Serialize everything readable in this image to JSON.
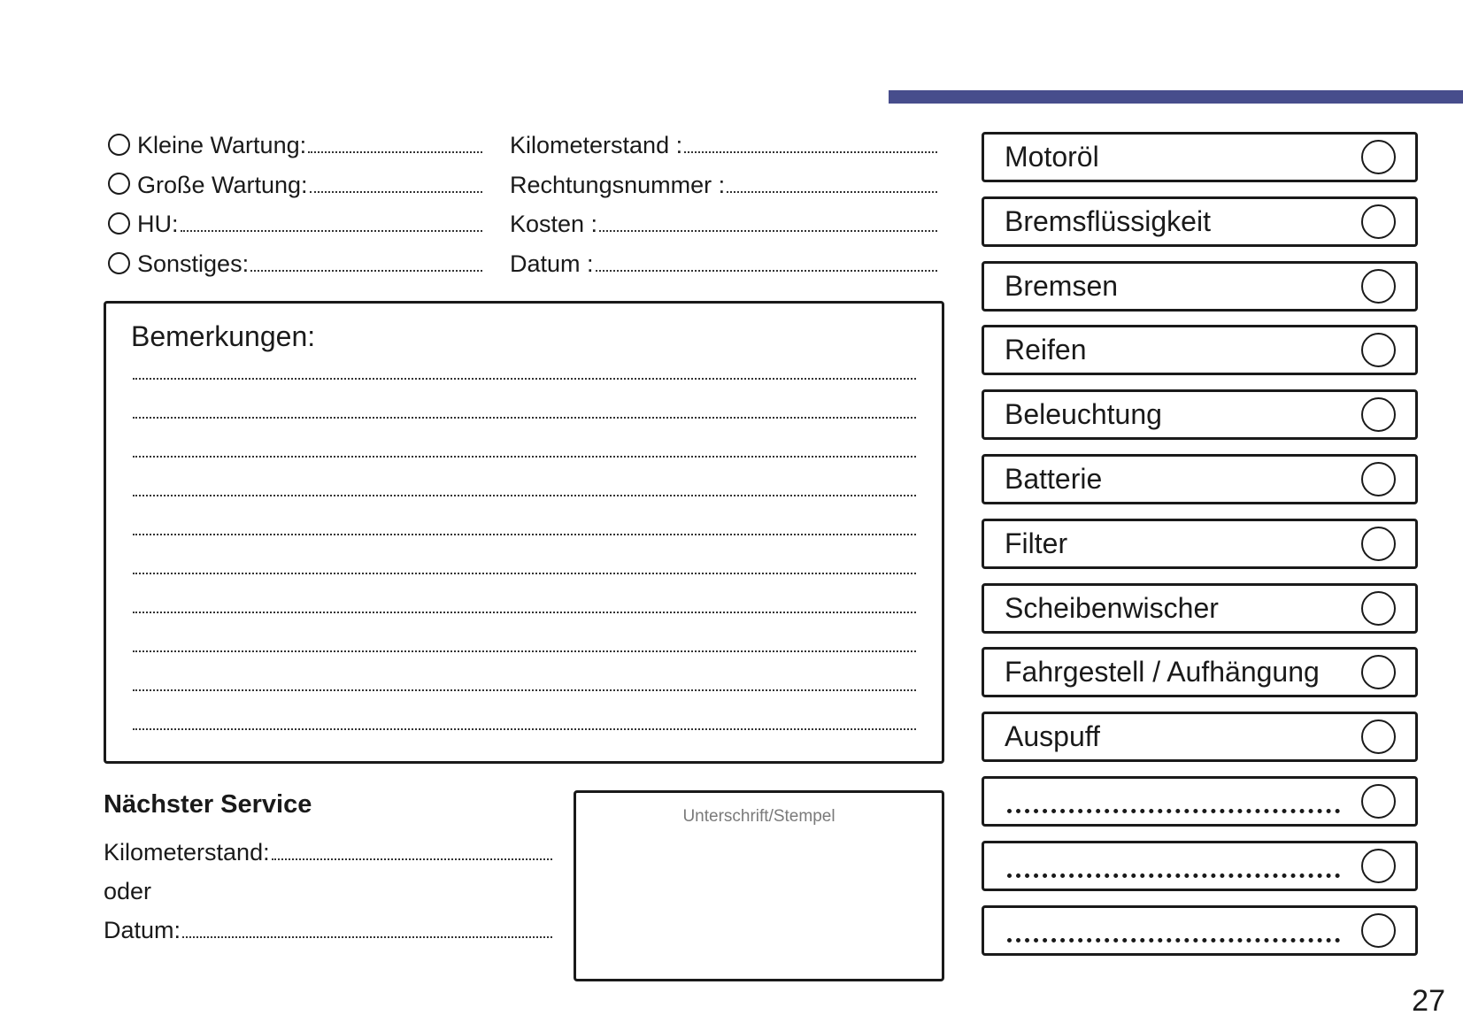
{
  "accent_color": "#474d8c",
  "service_types": [
    {
      "label": "Kleine Wartung:"
    },
    {
      "label": "Große Wartung:"
    },
    {
      "label": "HU:"
    },
    {
      "label": "Sonstiges:"
    }
  ],
  "details": [
    {
      "label": "Kilometerstand :"
    },
    {
      "label": "Rechtungsnummer :"
    },
    {
      "label": "Kosten :"
    },
    {
      "label": "Datum :"
    }
  ],
  "remarks": {
    "title": "Bemerkungen:",
    "line_count": 10
  },
  "next_service": {
    "title": "Nächster Service",
    "mileage_label": "Kilometerstand:",
    "or_label": "oder",
    "date_label": "Datum:"
  },
  "signature": {
    "label": "Unterschrift/Stempel"
  },
  "checklist": [
    {
      "label": "Motoröl"
    },
    {
      "label": "Bremsflüssigkeit"
    },
    {
      "label": "Bremsen"
    },
    {
      "label": "Reifen"
    },
    {
      "label": "Beleuchtung"
    },
    {
      "label": "Batterie"
    },
    {
      "label": "Filter"
    },
    {
      "label": "Scheibenwischer"
    },
    {
      "label": "Fahrgestell / Aufhängung"
    },
    {
      "label": "Auspuff"
    },
    {
      "label": ""
    },
    {
      "label": ""
    },
    {
      "label": ""
    }
  ],
  "page_number": "27"
}
